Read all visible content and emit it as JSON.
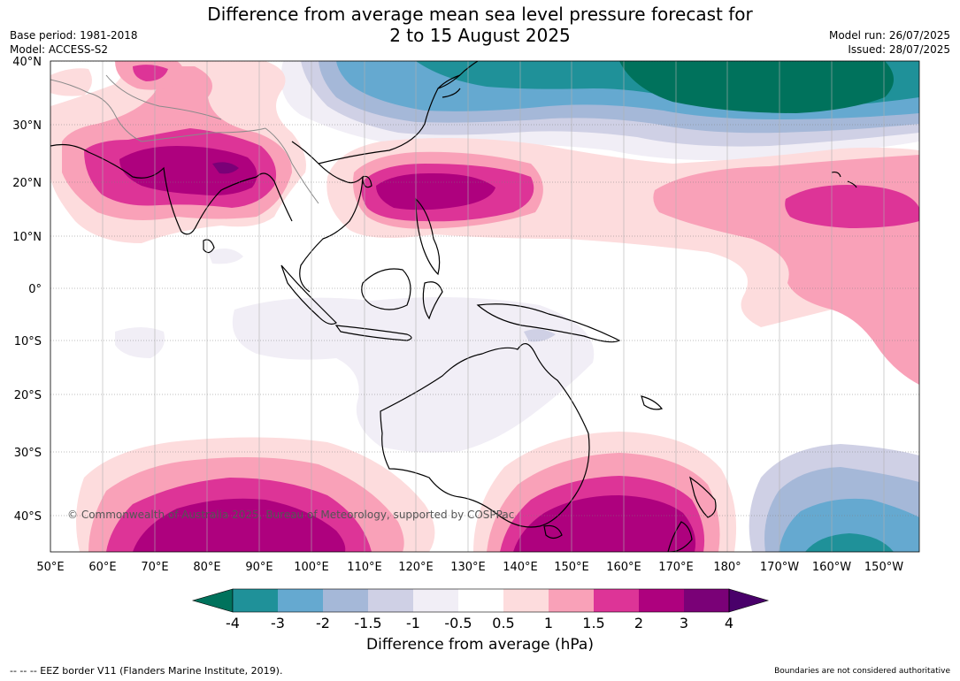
{
  "title": {
    "line1": "Difference from average mean sea level pressure forecast for",
    "line2": "2 to 15 August 2025"
  },
  "meta": {
    "base_period": "Base period: 1981-2018",
    "model": "Model: ACCESS-S2",
    "model_run": "Model run: 26/07/2025",
    "issued": "Issued: 28/07/2025"
  },
  "latitudes": [
    "40°N",
    "30°N",
    "20°N",
    "10°N",
    "0°",
    "10°S",
    "20°S",
    "30°S",
    "40°S"
  ],
  "longitudes": [
    "50°E",
    "60°E",
    "70°E",
    "80°E",
    "90°E",
    "100°E",
    "110°E",
    "120°E",
    "130°E",
    "140°E",
    "150°E",
    "160°E",
    "170°E",
    "180°",
    "170°W",
    "160°W",
    "150°W"
  ],
  "copyright": "© Commonwealth of Australia 2025, Bureau of Meteorology, supported by COSPPac",
  "colorbar": {
    "ticks": [
      "-4",
      "-3",
      "-2",
      "-1.5",
      "-1",
      "-0.5",
      "0.5",
      "1",
      "1.5",
      "2",
      "3",
      "4"
    ],
    "label": "Difference from average (hPa)",
    "colors": {
      "below_min": "#00725c",
      "n4_n3": "#1f9199",
      "n3_n2": "#65a9d0",
      "n2_n15": "#a5b8d8",
      "n15_n1": "#cfd0e5",
      "n1_n05": "#f1eef6",
      "n05_05": "#ffffff",
      "p05_1": "#fddcdd",
      "p1_15": "#f9a1b8",
      "p15_2": "#dd3497",
      "p2_3": "#ae017e",
      "p3_4": "#7a0177",
      "above_max": "#49006a"
    }
  },
  "footer": {
    "eez": "--  --  -- EEZ border V11 (Flanders Marine Institute, 2019).",
    "boundaries": "Boundaries are not considered authoritative"
  }
}
